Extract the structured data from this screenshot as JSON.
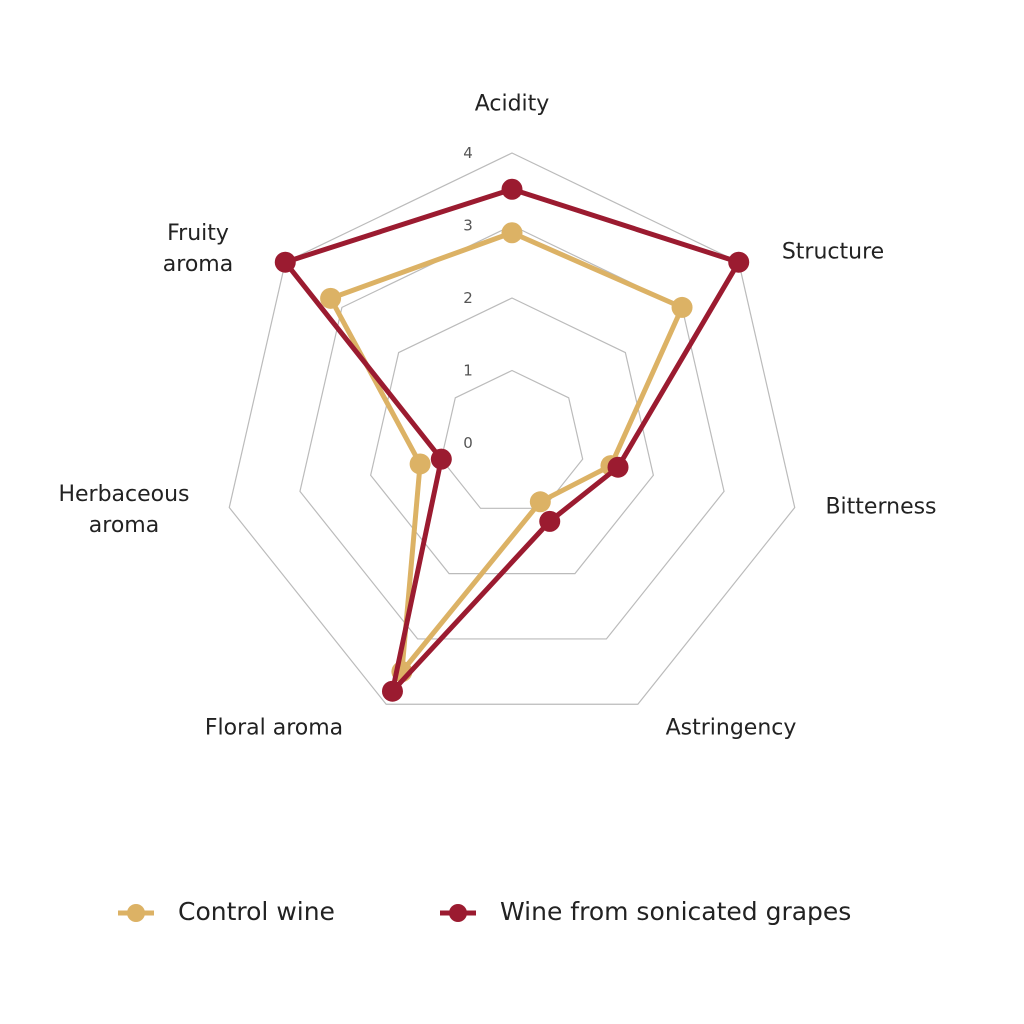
{
  "chart_data": {
    "type": "radar",
    "categories": [
      "Acidity",
      "Structure",
      "Bitterness",
      "Astringency",
      "Floral aroma",
      "Herbaceous aroma",
      "Fruity aroma"
    ],
    "series": [
      {
        "name": "Control wine",
        "color": "#dcb265",
        "values": [
          2.9,
          3.0,
          1.4,
          0.9,
          3.5,
          1.3,
          3.2
        ]
      },
      {
        "name": "Wine from sonicated grapes",
        "color": "#9b1b30",
        "values": [
          3.5,
          4.0,
          1.5,
          1.2,
          3.8,
          1.0,
          4.0
        ]
      }
    ],
    "ylim": [
      0,
      4
    ],
    "yticks": [
      0,
      1,
      2,
      3,
      4
    ],
    "grid": true
  }
}
